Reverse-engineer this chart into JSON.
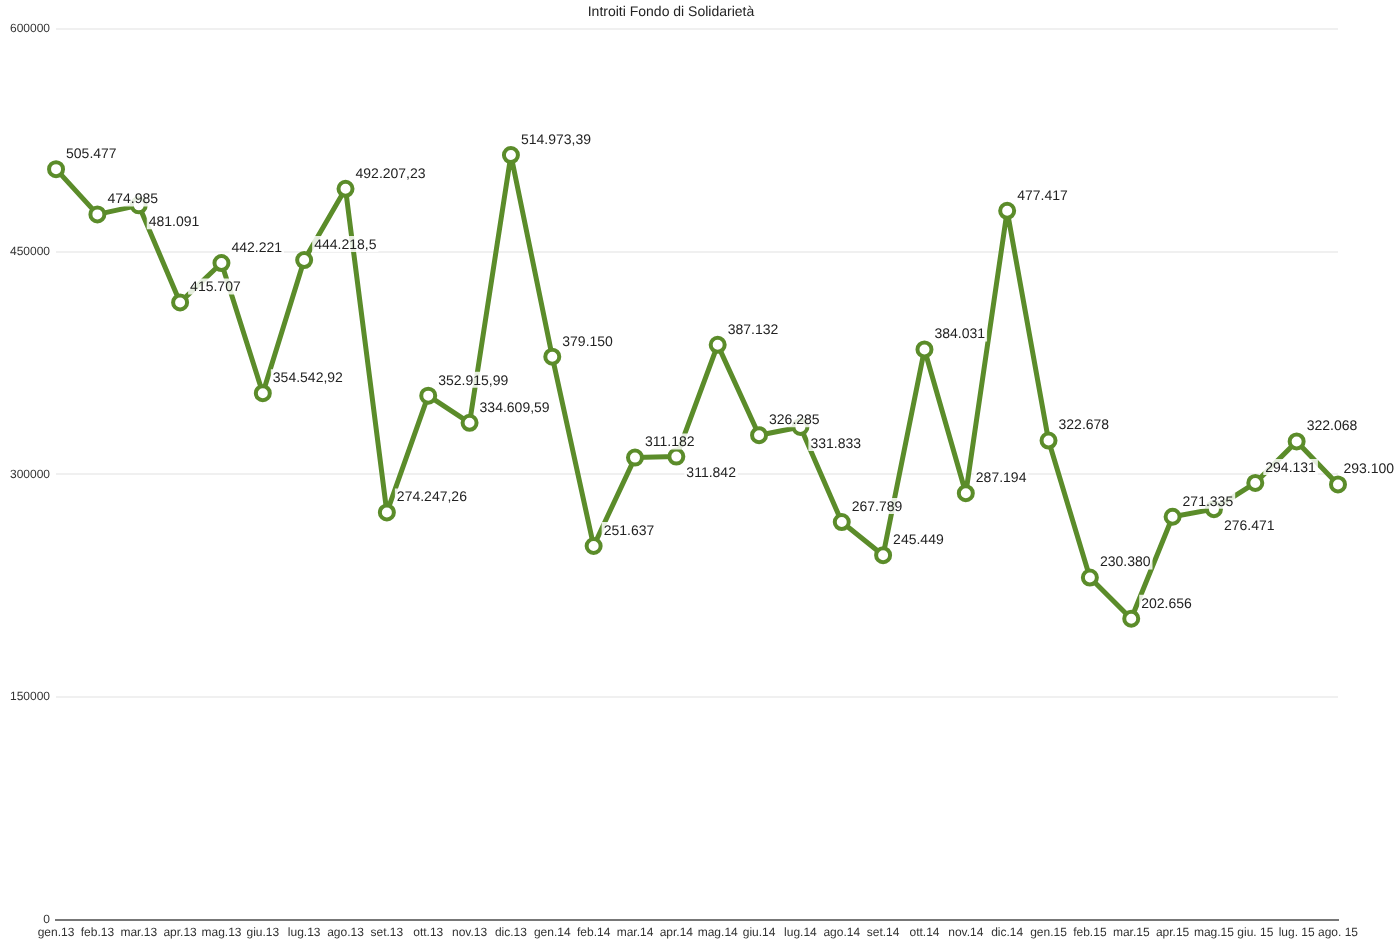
{
  "chart_data": {
    "type": "line",
    "title": "Introiti Fondo di Solidarietà",
    "categories": [
      "gen.13",
      "feb.13",
      "mar.13",
      "apr.13",
      "mag.13",
      "giu.13",
      "lug.13",
      "ago.13",
      "set.13",
      "ott.13",
      "nov.13",
      "dic.13",
      "gen.14",
      "feb.14",
      "mar.14",
      "apr.14",
      "mag.14",
      "giu.14",
      "lug.14",
      "ago.14",
      "set.14",
      "ott.14",
      "nov.14",
      "dic.14",
      "gen.15",
      "feb.15",
      "mar.15",
      "apr.15",
      "mag.15",
      "giu. 15",
      "lug. 15",
      "ago. 15"
    ],
    "series": [
      {
        "color": "#5b8c2a",
        "values": [
          505477,
          474985,
          481091,
          415707,
          442221,
          354542.92,
          444218.5,
          492207.23,
          274247.26,
          352915.99,
          334609.59,
          514973.39,
          379150,
          251637,
          311182,
          311842,
          387132,
          326285,
          331833,
          267789,
          245449,
          384031,
          287194,
          477417,
          322678,
          230380,
          202656,
          271335,
          276471,
          294131,
          322068,
          293100
        ],
        "value_labels": [
          "505.477",
          "474.985",
          "481.091",
          "415.707",
          "442.221",
          "354.542,92",
          "444.218,5",
          "492.207,23",
          "274.247,26",
          "352.915,99",
          "334.609,59",
          "514.973,39",
          "379.150",
          "251.637",
          "311.182",
          "311.842",
          "387.132",
          "326.285",
          "331.833",
          "267.789",
          "245.449",
          "384.031",
          "287.194",
          "477.417",
          "322.678",
          "230.380",
          "202.656",
          "271.335",
          "276.471",
          "294.131",
          "322.068",
          "293.100"
        ]
      }
    ],
    "ylim": [
      0,
      600000
    ],
    "yticks": [
      0,
      150000,
      300000,
      450000,
      600000
    ],
    "grid": "y",
    "marker": "circle",
    "line_style": "solid",
    "legend": false
  }
}
